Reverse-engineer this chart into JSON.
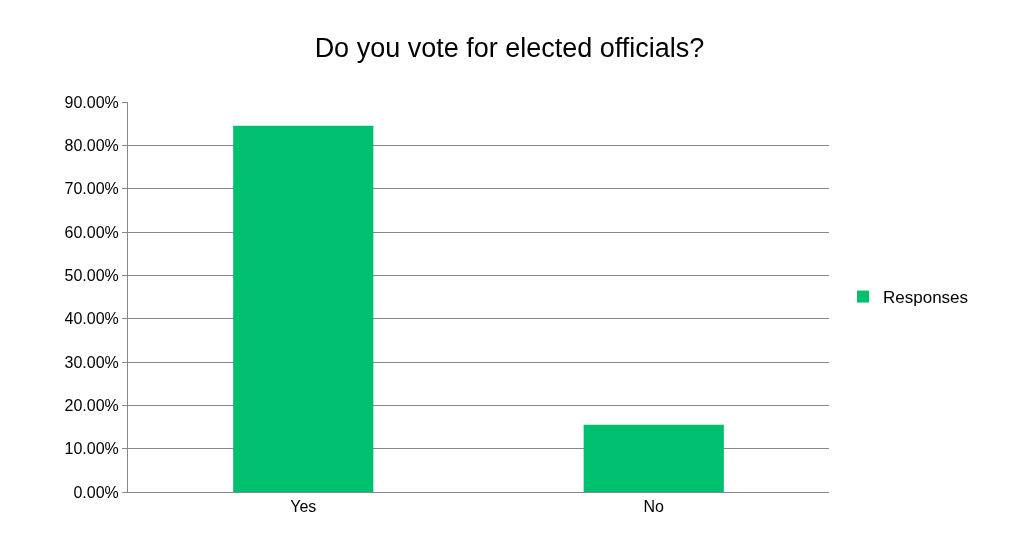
{
  "chart_data": {
    "type": "bar",
    "title": "Do you vote for elected officials?",
    "categories": [
      "Yes",
      "No"
    ],
    "series": [
      {
        "name": "Responses",
        "color": "#00bf6f",
        "values": [
          84.5,
          15.5
        ]
      }
    ],
    "ylim": [
      0,
      90
    ],
    "yticks": [
      {
        "value": 0,
        "label": "0.00%"
      },
      {
        "value": 10,
        "label": "10.00%"
      },
      {
        "value": 20,
        "label": "20.00%"
      },
      {
        "value": 30,
        "label": "30.00%"
      },
      {
        "value": 40,
        "label": "40.00%"
      },
      {
        "value": 50,
        "label": "50.00%"
      },
      {
        "value": 60,
        "label": "60.00%"
      },
      {
        "value": 70,
        "label": "70.00%"
      },
      {
        "value": 80,
        "label": "80.00%"
      },
      {
        "value": 90,
        "label": "90.00%"
      }
    ],
    "grid": "y",
    "legend": "right"
  }
}
